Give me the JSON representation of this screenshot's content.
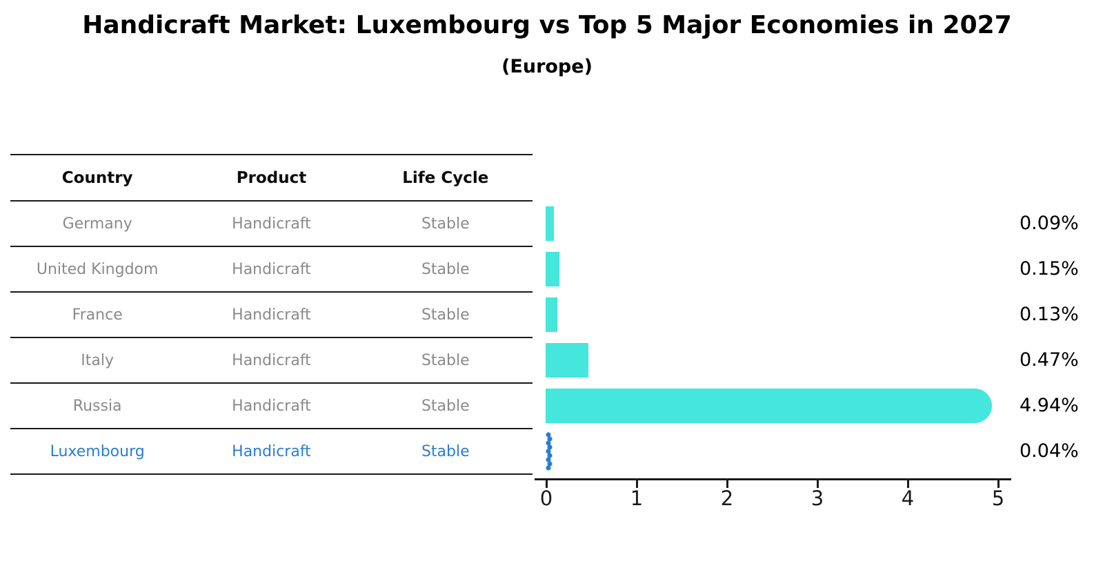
{
  "title": "Handicraft Market: Luxembourg vs Top 5 Major Economies in 2027",
  "subtitle": "(Europe)",
  "table": {
    "headers": [
      "Country",
      "Product",
      "Life Cycle"
    ],
    "rows": [
      {
        "country": "Germany",
        "product": "Handicraft",
        "life_cycle": "Stable",
        "highlight": false
      },
      {
        "country": "United Kingdom",
        "product": "Handicraft",
        "life_cycle": "Stable",
        "highlight": false
      },
      {
        "country": "France",
        "product": "Handicraft",
        "life_cycle": "Stable",
        "highlight": false
      },
      {
        "country": "Italy",
        "product": "Handicraft",
        "life_cycle": "Stable",
        "highlight": false
      },
      {
        "country": "Russia",
        "product": "Handicraft",
        "life_cycle": "Stable",
        "highlight": false
      },
      {
        "country": "Luxembourg",
        "product": "Handicraft",
        "life_cycle": "Stable",
        "highlight": true
      }
    ]
  },
  "chart_data": {
    "type": "bar",
    "orientation": "horizontal",
    "categories": [
      "Germany",
      "United Kingdom",
      "France",
      "Italy",
      "Russia",
      "Luxembourg"
    ],
    "values": [
      0.09,
      0.15,
      0.13,
      0.47,
      4.94,
      0.04
    ],
    "value_labels": [
      "0.09%",
      "0.15%",
      "0.13%",
      "0.47%",
      "4.94%",
      "0.04%"
    ],
    "unit": "%",
    "xlim": [
      0,
      5
    ],
    "xticks": [
      0,
      1,
      2,
      3,
      4,
      5
    ],
    "grid": false,
    "legend": false,
    "bar_color": "#45e6db",
    "highlight_color": "#2b7cd4",
    "highlight_index": 5
  },
  "colors": {
    "header_text": "#0d0d0d",
    "row_text": "#8a8a8a",
    "line": "#1a1a1a",
    "value_text": "#000000"
  }
}
